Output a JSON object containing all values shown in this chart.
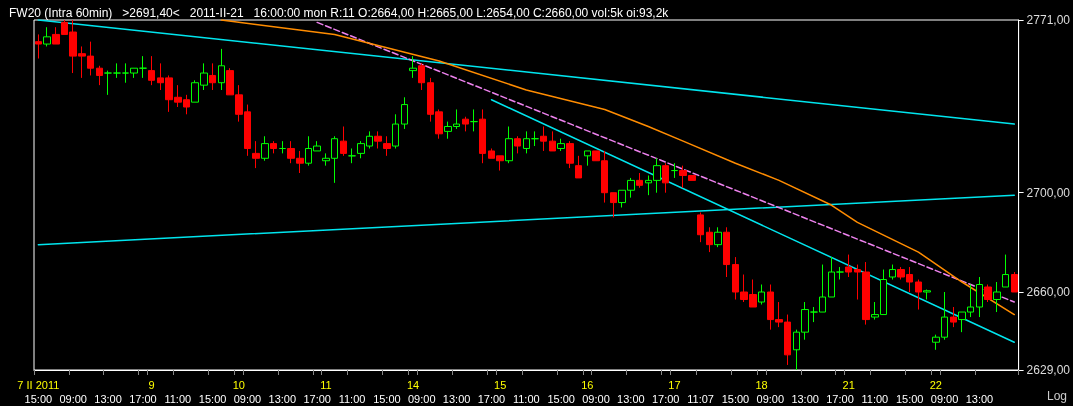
{
  "chart_data": {
    "type": "candlestick",
    "title": "FW20 (Intra 60min)   >2691,40<   2011-II-21   16:00:00 mon R:11 O:2664,00 H:2665,00 L:2654,00 C:2660,00 vol:5k oi:93,2k",
    "categories": [
      "7 II 2011\n15:00",
      null,
      null,
      null,
      "\n09:00",
      null,
      null,
      null,
      "\n13:00",
      null,
      null,
      null,
      "\n17:00",
      "9\n",
      null,
      null,
      "\n11:00",
      null,
      null,
      null,
      "\n15:00",
      null,
      null,
      "10\n",
      "\n09:00",
      null,
      null,
      null,
      "\n13:00",
      null,
      null,
      null,
      "\n17:00",
      "11\n",
      null,
      null,
      "\n11:00",
      null,
      null,
      null,
      "\n15:00",
      null,
      null,
      "14\n",
      "\n09:00",
      null,
      null,
      null,
      "\n13:00",
      null,
      null,
      null,
      "\n17:00",
      "15\n",
      null,
      null,
      "\n11:00",
      null,
      null,
      null,
      "\n15:00",
      null,
      null,
      "16\n",
      "\n09:00",
      null,
      null,
      null,
      "\n13:00",
      null,
      null,
      null,
      "\n17:00",
      "17\n",
      null,
      null,
      "\n11:07",
      null,
      null,
      null,
      "\n15:00",
      null,
      null,
      "18\n",
      "\n09:00",
      null,
      null,
      null,
      "\n13:00",
      null,
      null,
      null,
      "\n17:00",
      "21\n",
      null,
      null,
      "\n11:00",
      null,
      null,
      null,
      "\n15:00",
      null,
      null,
      "22\n",
      "\n09:00",
      null,
      null,
      null,
      "\n13:00",
      null,
      null,
      null,
      null
    ],
    "ohlc": [
      [
        2762,
        2765,
        2755,
        2761
      ],
      [
        2761,
        2768,
        2760,
        2764
      ],
      [
        2765,
        2768,
        2761,
        2761
      ],
      [
        2770,
        2771,
        2765,
        2765
      ],
      [
        2766,
        2771,
        2749,
        2756
      ],
      [
        2757,
        2760,
        2747,
        2756
      ],
      [
        2756,
        2762,
        2748,
        2751
      ],
      [
        2751,
        2752,
        2744,
        2748
      ],
      [
        2749,
        2750,
        2740,
        2749
      ],
      [
        2749,
        2753,
        2747,
        2749
      ],
      [
        2749,
        2753,
        2745,
        2749
      ],
      [
        2749,
        2751,
        2747,
        2751
      ],
      [
        2751,
        2756,
        2747,
        2751
      ],
      [
        2750,
        2756,
        2744,
        2746
      ],
      [
        2747,
        2753,
        2742,
        2745
      ],
      [
        2747,
        2748,
        2733,
        2738
      ],
      [
        2739,
        2744,
        2735,
        2737
      ],
      [
        2738,
        2740,
        2732,
        2735
      ],
      [
        2737,
        2746,
        2737,
        2745
      ],
      [
        2744,
        2753,
        2742,
        2749
      ],
      [
        2748,
        2753,
        2742,
        2745
      ],
      [
        2745,
        2759,
        2742,
        2752
      ],
      [
        2750,
        2751,
        2740,
        2740
      ],
      [
        2740,
        2744,
        2729,
        2732
      ],
      [
        2733,
        2736,
        2715,
        2718
      ],
      [
        2716,
        2721,
        2710,
        2714
      ],
      [
        2714,
        2723,
        2713,
        2720
      ],
      [
        2720,
        2721,
        2716,
        2718
      ],
      [
        2718,
        2721,
        2716,
        2718
      ],
      [
        2718,
        2721,
        2712,
        2714
      ],
      [
        2714,
        2717,
        2708,
        2712
      ],
      [
        2712,
        2723,
        2711,
        2718
      ],
      [
        2717,
        2721,
        2717,
        2719
      ],
      [
        2713,
        2716,
        2711,
        2714
      ],
      [
        2714,
        2723,
        2704,
        2722
      ],
      [
        2721,
        2727,
        2715,
        2716
      ],
      [
        2715,
        2718,
        2712,
        2715
      ],
      [
        2716,
        2721,
        2714,
        2720
      ],
      [
        2719,
        2725,
        2718,
        2723
      ],
      [
        2723,
        2725,
        2718,
        2721
      ],
      [
        2720,
        2723,
        2715,
        2718
      ],
      [
        2719,
        2732,
        2718,
        2728
      ],
      [
        2728,
        2739,
        2726,
        2736
      ],
      [
        2750,
        2756,
        2747,
        2751
      ],
      [
        2752,
        2753,
        2742,
        2745
      ],
      [
        2745,
        2747,
        2729,
        2732
      ],
      [
        2733,
        2734,
        2722,
        2724
      ],
      [
        2725,
        2729,
        2722,
        2727
      ],
      [
        2727,
        2734,
        2726,
        2728
      ],
      [
        2730,
        2731,
        2725,
        2728
      ],
      [
        2729,
        2734,
        2725,
        2729
      ],
      [
        2730,
        2734,
        2712,
        2716
      ],
      [
        2717,
        2718,
        2714,
        2714
      ],
      [
        2715,
        2715,
        2709,
        2713
      ],
      [
        2713,
        2727,
        2712,
        2722
      ],
      [
        2722,
        2723,
        2716,
        2719
      ],
      [
        2718,
        2725,
        2716,
        2722
      ],
      [
        2722,
        2725,
        2719,
        2722
      ],
      [
        2723,
        2727,
        2717,
        2721
      ],
      [
        2721,
        2725,
        2717,
        2717
      ],
      [
        2718,
        2722,
        2717,
        2720
      ],
      [
        2720,
        2721,
        2710,
        2712
      ],
      [
        2711,
        2715,
        2706,
        2706
      ],
      [
        2715,
        2717,
        2711,
        2717
      ],
      [
        2717,
        2717,
        2713,
        2713
      ],
      [
        2713,
        2717,
        2696,
        2700
      ],
      [
        2700,
        2700,
        2690,
        2696
      ],
      [
        2696,
        2701,
        2694,
        2701
      ],
      [
        2701,
        2706,
        2698,
        2705
      ],
      [
        2705,
        2708,
        2702,
        2703
      ],
      [
        2704,
        2707,
        2699,
        2705
      ],
      [
        2705,
        2714,
        2700,
        2711
      ],
      [
        2711,
        2712,
        2700,
        2704
      ],
      [
        2709,
        2712,
        2706,
        2709
      ],
      [
        2709,
        2711,
        2702,
        2707
      ],
      [
        2707,
        2707,
        2705,
        2705
      ],
      [
        2691,
        2692,
        2680,
        2683
      ],
      [
        2684,
        2686,
        2676,
        2679
      ],
      [
        2679,
        2686,
        2678,
        2684
      ],
      [
        2684,
        2686,
        2666,
        2671
      ],
      [
        2671,
        2674,
        2657,
        2660
      ],
      [
        2660,
        2667,
        2656,
        2657
      ],
      [
        2659,
        2665,
        2654,
        2654
      ],
      [
        2656,
        2663,
        2655,
        2660
      ],
      [
        2660,
        2663,
        2645,
        2649
      ],
      [
        2649,
        2656,
        2646,
        2648
      ],
      [
        2648,
        2651,
        2631,
        2635
      ],
      [
        2637,
        2645,
        2629,
        2644
      ],
      [
        2644,
        2656,
        2641,
        2653
      ],
      [
        2652,
        2654,
        2648,
        2652
      ],
      [
        2652,
        2671,
        2652,
        2658
      ],
      [
        2658,
        2674,
        2658,
        2668
      ],
      [
        2668,
        2670,
        2665,
        2668
      ],
      [
        2670,
        2675,
        2666,
        2668
      ],
      [
        2669,
        2671,
        2657,
        2668
      ],
      [
        2668,
        2672,
        2647,
        2649
      ],
      [
        2650,
        2656,
        2649,
        2651
      ],
      [
        2651,
        2669,
        2651,
        2665
      ],
      [
        2666,
        2671,
        2665,
        2669
      ],
      [
        2669,
        2670,
        2665,
        2666
      ],
      [
        2667,
        2670,
        2660,
        2664
      ],
      [
        2664,
        2665,
        2653,
        2660
      ],
      [
        2660,
        2661,
        2657,
        2660.5
      ],
      [
        2640,
        2643,
        2637,
        2642
      ],
      [
        2642,
        2660,
        2641,
        2650
      ],
      [
        2650,
        2654,
        2646,
        2648
      ],
      [
        2649,
        2652,
        2644,
        2652
      ],
      [
        2652,
        2663,
        2650,
        2654
      ],
      [
        2654,
        2666,
        2650,
        2663
      ],
      [
        2662,
        2663,
        2656,
        2657
      ],
      [
        2657,
        2664,
        2652,
        2660
      ],
      [
        2662,
        2675,
        2662,
        2667
      ],
      [
        2667,
        2668,
        2660,
        2660
      ]
    ],
    "colors": [
      "#ff0000",
      "#00ff00",
      "#ff0000",
      "#ff0000",
      "#ff0000",
      "#ff0000",
      "#ff0000",
      "#ff0000",
      "#00ff00",
      "#00ff00",
      "#00ff00",
      "#00ff00",
      "#00ff00",
      "#ff0000",
      "#ff0000",
      "#ff0000",
      "#ff0000",
      "#ff0000",
      "#00ff00",
      "#00ff00",
      "#ff0000",
      "#00ff00",
      "#ff0000",
      "#ff0000",
      "#ff0000",
      "#ff0000",
      "#00ff00",
      "#ff0000",
      "#00ff00",
      "#ff0000",
      "#ff0000",
      "#00ff00",
      "#00ff00",
      "#00ff00",
      "#00ff00",
      "#ff0000",
      "#00ff00",
      "#00ff00",
      "#00ff00",
      "#ff0000",
      "#ff0000",
      "#00ff00",
      "#00ff00",
      "#00ff00",
      "#ff0000",
      "#ff0000",
      "#ff0000",
      "#00ff00",
      "#00ff00",
      "#ff0000",
      "#00ff00",
      "#ff0000",
      "#ff0000",
      "#ff0000",
      "#00ff00",
      "#ff0000",
      "#00ff00",
      "#00ff00",
      "#ff0000",
      "#ff0000",
      "#00ff00",
      "#ff0000",
      "#ff0000",
      "#00ff00",
      "#ff0000",
      "#ff0000",
      "#ff0000",
      "#00ff00",
      "#00ff00",
      "#ff0000",
      "#00ff00",
      "#00ff00",
      "#ff0000",
      "#00ff00",
      "#ff0000",
      "#ff0000",
      "#ff0000",
      "#ff0000",
      "#00ff00",
      "#ff0000",
      "#ff0000",
      "#ff0000",
      "#ff0000",
      "#00ff00",
      "#ff0000",
      "#ff0000",
      "#ff0000",
      "#00ff00",
      "#00ff00",
      "#00ff00",
      "#00ff00",
      "#00ff00",
      "#00ff00",
      "#ff0000",
      "#ff0000",
      "#ff0000",
      "#00ff00",
      "#00ff00",
      "#00ff00",
      "#ff0000",
      "#ff0000",
      "#ff0000",
      "#00ff00",
      "#00ff00",
      "#00ff00",
      "#ff0000",
      "#00ff00",
      "#00ff00",
      "#00ff00",
      "#ff0000",
      "#00ff00",
      "#00ff00",
      "#ff0000"
    ],
    "series": [
      {
        "type": "line",
        "color": "#00e5ee",
        "values": [
          2771,
          null,
          null,
          null,
          null,
          null,
          null,
          null,
          null,
          null,
          null,
          null,
          null,
          null,
          null,
          null,
          null,
          null,
          null,
          null,
          null,
          null,
          null,
          null,
          null,
          null,
          null,
          null,
          null,
          null,
          null,
          null,
          null,
          null,
          null,
          null,
          null,
          null,
          null,
          null,
          null,
          null,
          null,
          null,
          null,
          null,
          null,
          null,
          null,
          null,
          null,
          null,
          null,
          null,
          null,
          null,
          null,
          null,
          null,
          null,
          null,
          null,
          null,
          null,
          null,
          null,
          null,
          null,
          null,
          null,
          null,
          null,
          null,
          null,
          null,
          null,
          null,
          null,
          null,
          null,
          null,
          null,
          null,
          null,
          null,
          null,
          null,
          null,
          null,
          null,
          null,
          null,
          null,
          null,
          null,
          null,
          null,
          null,
          null,
          null,
          null,
          null,
          null,
          null,
          null,
          null,
          null,
          null,
          null,
          null,
          null,
          null,
          2728
        ]
      },
      {
        "type": "line",
        "color": "#00e5ee",
        "values": [
          2679,
          null,
          null,
          null,
          null,
          null,
          null,
          null,
          null,
          null,
          null,
          null,
          null,
          null,
          null,
          null,
          null,
          null,
          null,
          null,
          null,
          null,
          null,
          null,
          null,
          null,
          null,
          null,
          null,
          null,
          null,
          null,
          null,
          null,
          null,
          null,
          null,
          null,
          null,
          null,
          null,
          null,
          null,
          null,
          null,
          null,
          null,
          null,
          null,
          null,
          null,
          null,
          null,
          null,
          null,
          null,
          null,
          null,
          null,
          null,
          null,
          null,
          null,
          null,
          null,
          null,
          null,
          null,
          null,
          null,
          null,
          null,
          null,
          null,
          null,
          null,
          null,
          null,
          null,
          null,
          null,
          null,
          null,
          null,
          null,
          null,
          null,
          null,
          null,
          null,
          null,
          null,
          null,
          null,
          null,
          null,
          null,
          null,
          null,
          null,
          null,
          null,
          null,
          null,
          null,
          null,
          null,
          null,
          null,
          null,
          null,
          null,
          2699
        ]
      },
      {
        "type": "line",
        "color": "#00e5ee",
        "values": [
          null,
          null,
          null,
          null,
          null,
          null,
          null,
          null,
          null,
          null,
          null,
          null,
          null,
          null,
          null,
          null,
          null,
          null,
          null,
          null,
          null,
          null,
          null,
          null,
          null,
          null,
          null,
          null,
          null,
          null,
          null,
          null,
          null,
          null,
          null,
          null,
          null,
          null,
          null,
          null,
          null,
          null,
          null,
          null,
          null,
          null,
          null,
          null,
          null,
          null,
          null,
          null,
          2738,
          null,
          null,
          null,
          null,
          null,
          null,
          null,
          null,
          null,
          null,
          null,
          null,
          null,
          null,
          null,
          null,
          null,
          null,
          null,
          null,
          null,
          null,
          null,
          null,
          null,
          null,
          null,
          null,
          null,
          null,
          null,
          null,
          null,
          null,
          null,
          null,
          null,
          null,
          null,
          null,
          null,
          null,
          null,
          null,
          null,
          null,
          null,
          null,
          null,
          null,
          null,
          null,
          null,
          null,
          null,
          null,
          null,
          null,
          null,
          2640
        ]
      },
      {
        "type": "line",
        "color": "#ee82ee",
        "line_style": "dashed",
        "values": [
          null,
          null,
          null,
          null,
          null,
          null,
          null,
          null,
          null,
          null,
          null,
          null,
          null,
          null,
          null,
          null,
          null,
          null,
          null,
          null,
          null,
          null,
          null,
          null,
          null,
          null,
          null,
          null,
          null,
          null,
          null,
          null,
          2770,
          null,
          null,
          null,
          null,
          null,
          null,
          null,
          null,
          null,
          null,
          null,
          null,
          null,
          null,
          null,
          null,
          null,
          null,
          null,
          null,
          null,
          null,
          null,
          null,
          null,
          null,
          null,
          null,
          null,
          null,
          null,
          null,
          null,
          null,
          null,
          null,
          null,
          null,
          null,
          null,
          null,
          null,
          null,
          null,
          null,
          null,
          null,
          null,
          null,
          null,
          null,
          null,
          null,
          null,
          null,
          null,
          null,
          null,
          null,
          null,
          null,
          null,
          null,
          null,
          null,
          null,
          null,
          null,
          null,
          null,
          null,
          null,
          null,
          null,
          null,
          null,
          null,
          null,
          null,
          2656
        ]
      },
      {
        "type": "line",
        "color": "#ff8c00",
        "values": [
          null,
          null,
          null,
          null,
          null,
          null,
          null,
          null,
          null,
          null,
          null,
          null,
          null,
          null,
          null,
          null,
          null,
          null,
          null,
          null,
          null,
          2771,
          null,
          null,
          null,
          null,
          null,
          null,
          null,
          null,
          null,
          null,
          null,
          null,
          2765,
          null,
          null,
          null,
          null,
          null,
          null,
          null,
          null,
          null,
          null,
          null,
          2754,
          null,
          null,
          null,
          null,
          null,
          null,
          null,
          null,
          null,
          2742,
          null,
          null,
          null,
          null,
          null,
          null,
          null,
          null,
          2734,
          null,
          null,
          null,
          null,
          2727,
          null,
          null,
          null,
          2721,
          null,
          null,
          null,
          null,
          null,
          2712,
          null,
          null,
          null,
          null,
          2705,
          null,
          null,
          null,
          null,
          null,
          2695,
          null,
          null,
          2688,
          null,
          null,
          null,
          null,
          null,
          null,
          2676,
          null,
          null,
          null,
          null,
          2664,
          null,
          null,
          null,
          null,
          null,
          2651
        ]
      }
    ],
    "ylim": [
      2629,
      2771
    ],
    "yticks": [
      {
        "value": 2629,
        "label": "2629,00"
      },
      {
        "value": 2660,
        "label": "2660,00"
      },
      {
        "value": 2700,
        "label": "2700,00"
      },
      {
        "value": 2771,
        "label": "2771,00"
      }
    ],
    "log": true,
    "annotations": [
      "Log"
    ]
  }
}
